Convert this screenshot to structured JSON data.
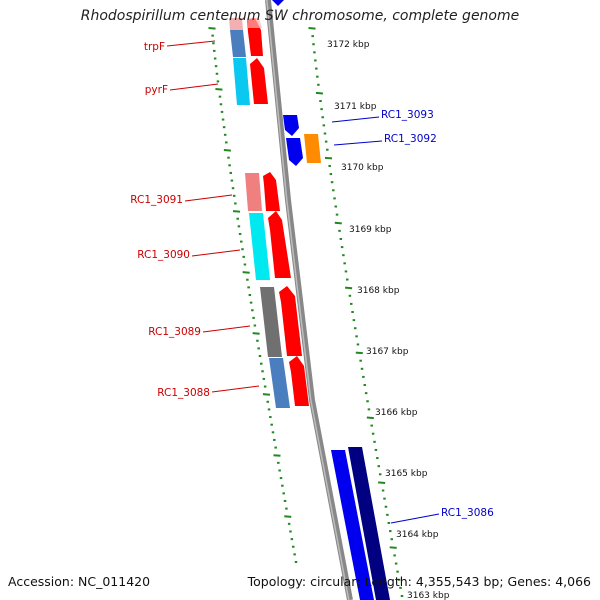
{
  "title": "Rhodospirillum centenum SW chromosome, complete genome",
  "footer": {
    "accession_text": "Accession: NC_011420",
    "summary_text": "Topology: circular; Length: 4,355,543 bp; Genes: 4,066"
  },
  "colors": {
    "backbone": "#8a8a8a",
    "tick": "#228822",
    "gene_label_minus": "#cc0000",
    "gene_label_plus": "#0000cc"
  },
  "map": {
    "kbp_ticks": [
      "3172 kbp",
      "3171 kbp",
      "3170 kbp",
      "3169 kbp",
      "3168 kbp",
      "3167 kbp",
      "3166 kbp",
      "3165 kbp",
      "3164 kbp",
      "3163 kbp"
    ],
    "genes": [
      {
        "label": "trpF",
        "strand": "minus"
      },
      {
        "label": "pyrF",
        "strand": "minus"
      },
      {
        "label": "RC1_3093",
        "strand": "plus"
      },
      {
        "label": "RC1_3092",
        "strand": "plus"
      },
      {
        "label": "RC1_3091",
        "strand": "minus"
      },
      {
        "label": "RC1_3090",
        "strand": "minus"
      },
      {
        "label": "RC1_3089",
        "strand": "minus"
      },
      {
        "label": "RC1_3088",
        "strand": "minus"
      },
      {
        "label": "RC1_3086",
        "strand": "plus"
      }
    ]
  }
}
